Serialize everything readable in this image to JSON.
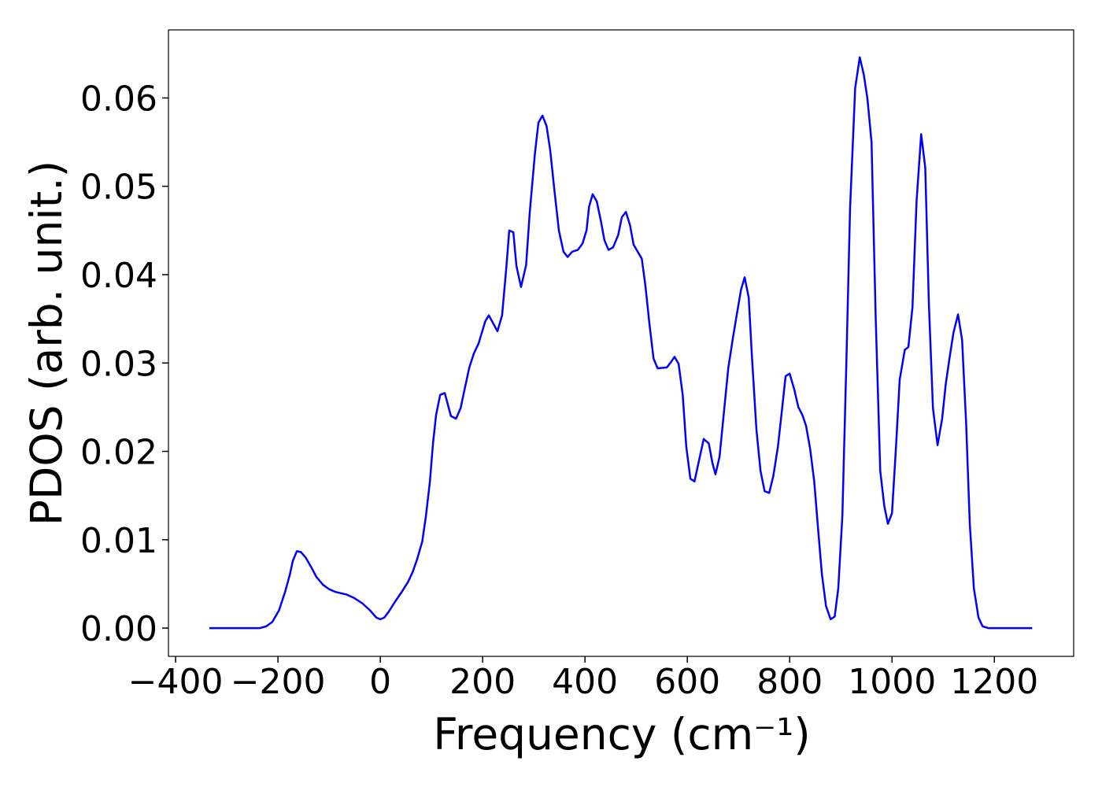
{
  "chart_data": {
    "type": "line",
    "xlabel": "Frequency (cm⁻¹)",
    "ylabel": "PDOS (arb. unit.)",
    "xlim": [
      -414,
      1355
    ],
    "ylim": [
      -0.0032,
      0.0677
    ],
    "xticks": [
      {
        "value": -400,
        "label": "−400"
      },
      {
        "value": -200,
        "label": "−200"
      },
      0,
      200,
      400,
      600,
      800,
      1000,
      1200
    ],
    "yticks": [
      {
        "value": 0,
        "label": "0.00"
      },
      0.01,
      0.02,
      0.03,
      0.04,
      0.05,
      0.06
    ],
    "x": [
      -334,
      -235,
      -223,
      -211,
      -198,
      -186,
      -177,
      -171,
      -163,
      -155,
      -146,
      -135,
      -125,
      -112,
      -100,
      -88,
      -66,
      -51,
      -35,
      -20,
      -8,
      0,
      8,
      17,
      29,
      42,
      54,
      63,
      72,
      82,
      89,
      97,
      103,
      109,
      117,
      126,
      138,
      148,
      157,
      165,
      174,
      183,
      192,
      205,
      212,
      229,
      238,
      246,
      252,
      260,
      266,
      275,
      285,
      292,
      302,
      309,
      317,
      325,
      332,
      340,
      349,
      358,
      366,
      375,
      386,
      395,
      403,
      408,
      415,
      423,
      431,
      438,
      446,
      455,
      465,
      472,
      480,
      488,
      495,
      511,
      518,
      526,
      534,
      542,
      560,
      568,
      575,
      583,
      591,
      598,
      606,
      614,
      623,
      632,
      642,
      649,
      655,
      663,
      672,
      680,
      689,
      697,
      705,
      712,
      720,
      726,
      735,
      743,
      751,
      760,
      768,
      777,
      785,
      792,
      800,
      809,
      817,
      825,
      832,
      840,
      848,
      855,
      863,
      871,
      880,
      888,
      895,
      903,
      911,
      918,
      928,
      937,
      945,
      952,
      960,
      968,
      977,
      985,
      992,
      1000,
      1008,
      1015,
      1025,
      1032,
      1040,
      1048,
      1057,
      1065,
      1072,
      1080,
      1089,
      1098,
      1105,
      1112,
      1120,
      1129,
      1137,
      1145,
      1152,
      1160,
      1169,
      1177,
      1188,
      1274
    ],
    "series": [
      {
        "color": "#0000ff",
        "values": [
          0,
          0,
          0.0002,
          0.0007,
          0.002,
          0.0041,
          0.006,
          0.0076,
          0.0087,
          0.0086,
          0.008,
          0.0069,
          0.0058,
          0.0049,
          0.0044,
          0.0041,
          0.0038,
          0.0034,
          0.0028,
          0.002,
          0.0012,
          0.001,
          0.0012,
          0.0019,
          0.003,
          0.0041,
          0.0052,
          0.0063,
          0.0078,
          0.0098,
          0.0126,
          0.0166,
          0.0209,
          0.0241,
          0.0264,
          0.0266,
          0.024,
          0.0237,
          0.0249,
          0.0271,
          0.0295,
          0.0311,
          0.0322,
          0.0347,
          0.0354,
          0.0336,
          0.0354,
          0.0406,
          0.045,
          0.0448,
          0.041,
          0.0386,
          0.0411,
          0.047,
          0.0536,
          0.0572,
          0.058,
          0.0568,
          0.0541,
          0.0497,
          0.045,
          0.0426,
          0.042,
          0.0426,
          0.0428,
          0.0435,
          0.045,
          0.0477,
          0.0491,
          0.0483,
          0.0461,
          0.0439,
          0.0428,
          0.0431,
          0.0445,
          0.0465,
          0.0471,
          0.0456,
          0.0434,
          0.0418,
          0.0388,
          0.0344,
          0.0305,
          0.0294,
          0.0295,
          0.0301,
          0.0307,
          0.0299,
          0.0264,
          0.0205,
          0.0169,
          0.0166,
          0.019,
          0.0214,
          0.0209,
          0.0187,
          0.0174,
          0.0194,
          0.0247,
          0.0294,
          0.0328,
          0.0356,
          0.0383,
          0.0397,
          0.0374,
          0.031,
          0.0225,
          0.0178,
          0.0155,
          0.0153,
          0.0172,
          0.0205,
          0.0247,
          0.0285,
          0.0288,
          0.027,
          0.025,
          0.0241,
          0.0229,
          0.0203,
          0.0166,
          0.0116,
          0.0061,
          0.0025,
          0.001,
          0.0013,
          0.0045,
          0.0127,
          0.0305,
          0.0474,
          0.0611,
          0.0646,
          0.0626,
          0.0599,
          0.055,
          0.0354,
          0.0178,
          0.0138,
          0.0118,
          0.013,
          0.0207,
          0.0281,
          0.0315,
          0.0318,
          0.0363,
          0.0483,
          0.0559,
          0.0521,
          0.0368,
          0.0249,
          0.0207,
          0.0237,
          0.0276,
          0.0304,
          0.0334,
          0.0355,
          0.0326,
          0.023,
          0.0118,
          0.0045,
          0.0012,
          0.0002,
          0,
          0
        ]
      }
    ]
  }
}
